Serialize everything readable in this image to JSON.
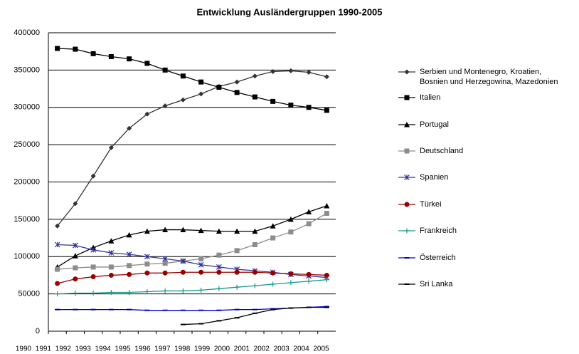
{
  "chart_data": {
    "type": "line",
    "title": "Entwicklung Ausländergruppen 1990-2005",
    "categories": [
      "1990",
      "1991",
      "1992",
      "1993",
      "1994",
      "1995",
      "1996",
      "1997",
      "1998",
      "1999",
      "2000",
      "2001",
      "2002",
      "2003",
      "2004",
      "2005"
    ],
    "ylim": [
      0,
      400000
    ],
    "yticks": [
      0,
      50000,
      100000,
      150000,
      200000,
      250000,
      300000,
      350000,
      400000
    ],
    "grid": true,
    "series": [
      {
        "name": "Serbien und Montenegro, Kroatien, Bosnien und Herzegowina, Mazedonien",
        "color": "#333333",
        "marker": "diamond",
        "values": [
          141000,
          171000,
          208000,
          246000,
          272000,
          291000,
          302000,
          310000,
          318000,
          328000,
          334000,
          342000,
          348000,
          349000,
          347000,
          341000
        ]
      },
      {
        "name": "Italien",
        "color": "#000000",
        "marker": "square",
        "values": [
          379000,
          378000,
          372000,
          368000,
          365000,
          359000,
          350000,
          342000,
          334000,
          327000,
          320000,
          314000,
          308000,
          303000,
          300000,
          296000
        ]
      },
      {
        "name": "Portugal",
        "color": "#000000",
        "marker": "triangle",
        "values": [
          86000,
          101000,
          112000,
          121000,
          129000,
          134000,
          136000,
          136000,
          135000,
          134000,
          134000,
          134000,
          141000,
          150000,
          160000,
          168000
        ]
      },
      {
        "name": "Deutschland",
        "color": "#8c8c8c",
        "marker": "square",
        "values": [
          83000,
          85000,
          86000,
          86000,
          88000,
          90000,
          91000,
          94000,
          97000,
          102000,
          108000,
          116000,
          125000,
          133000,
          144000,
          158000
        ]
      },
      {
        "name": "Spanien",
        "color": "#333399",
        "marker": "star",
        "values": [
          116000,
          115000,
          109000,
          105000,
          103000,
          100000,
          97000,
          94000,
          89000,
          86000,
          83000,
          81000,
          79000,
          76000,
          74000,
          72000
        ]
      },
      {
        "name": "Türkei",
        "color": "#990000",
        "marker": "circle",
        "values": [
          64000,
          70000,
          73000,
          75000,
          76000,
          78000,
          78000,
          79000,
          79000,
          79000,
          79000,
          79000,
          78000,
          77000,
          76000,
          75000
        ]
      },
      {
        "name": "Frankreich",
        "color": "#1a9a8a",
        "marker": "plus",
        "values": [
          50000,
          51000,
          51000,
          52000,
          52000,
          53000,
          54000,
          54000,
          55000,
          57000,
          59000,
          61000,
          63000,
          65000,
          67000,
          69000
        ]
      },
      {
        "name": "Österreich",
        "color": "#0000cc",
        "marker": "dash",
        "values": [
          29000,
          29000,
          29000,
          29000,
          29000,
          28000,
          28000,
          28000,
          28000,
          28000,
          29000,
          29000,
          30000,
          31000,
          32000,
          33000
        ]
      },
      {
        "name": "Sri Lanka",
        "color": "#000000",
        "marker": "dash",
        "values": [
          null,
          null,
          null,
          null,
          null,
          null,
          null,
          9000,
          10000,
          14000,
          18000,
          24000,
          29000,
          31000,
          32000,
          32000
        ]
      }
    ]
  }
}
